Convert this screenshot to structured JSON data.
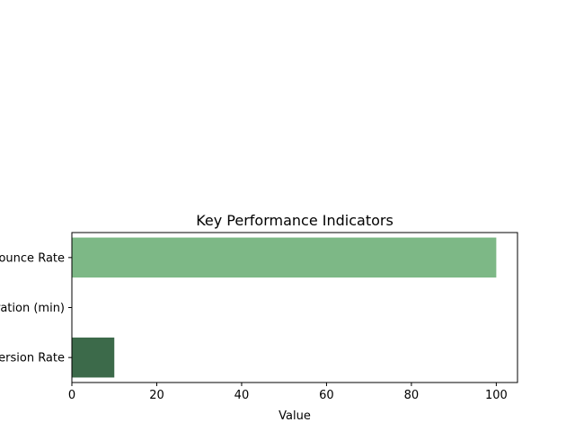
{
  "chart_data": {
    "type": "bar",
    "orientation": "horizontal",
    "title": "Key Performance Indicators",
    "xlabel": "Value",
    "ylabel": "",
    "categories": [
      "Bounce Rate",
      "Avg. Session Duration (min)",
      "Conversion Rate"
    ],
    "values": [
      100,
      0,
      10
    ],
    "xlim": [
      0,
      105
    ],
    "xticks": [
      0,
      20,
      40,
      60,
      80,
      100
    ],
    "grid": false,
    "legend": "none",
    "colors": [
      "#7db886",
      "#5a9a6a",
      "#3c6a4a"
    ]
  }
}
